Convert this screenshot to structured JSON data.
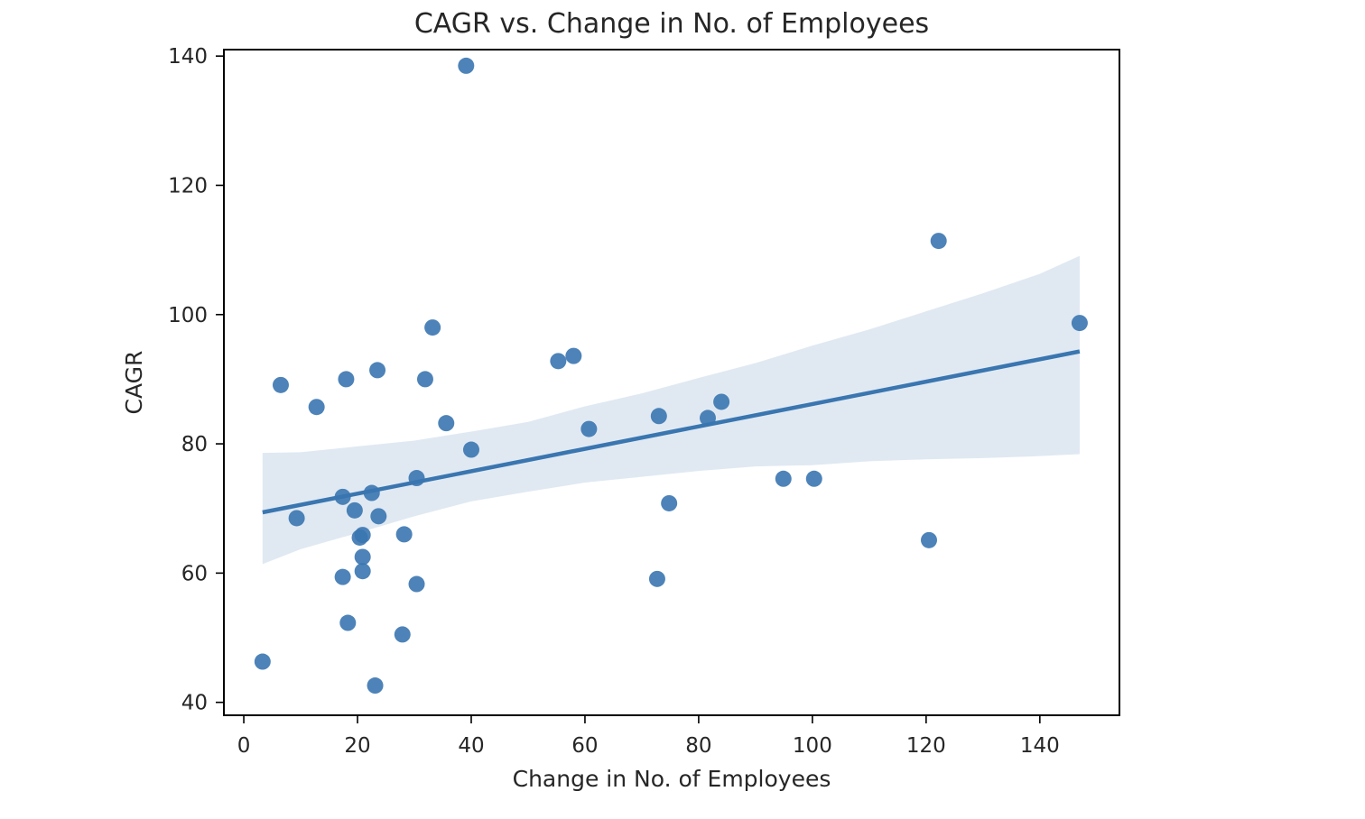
{
  "chart_data": {
    "type": "scatter",
    "title": "CAGR vs. Change in No. of Employees",
    "xlabel": "Change in No. of Employees",
    "ylabel": "CAGR",
    "xlim": [
      -3.5,
      154
    ],
    "ylim": [
      38,
      141
    ],
    "xticks": [
      0,
      20,
      40,
      60,
      80,
      100,
      120,
      140
    ],
    "yticks": [
      40,
      60,
      80,
      100,
      120,
      140
    ],
    "grid": false,
    "legend": "none",
    "colors": {
      "point": "#3a76b0",
      "line": "#3a76b0",
      "band": "#dbe5f0",
      "axes": "#000000"
    },
    "points": [
      {
        "x": 3.3,
        "y": 46.3
      },
      {
        "x": 6.5,
        "y": 89.1
      },
      {
        "x": 9.3,
        "y": 68.5
      },
      {
        "x": 12.8,
        "y": 85.7
      },
      {
        "x": 17.4,
        "y": 71.8
      },
      {
        "x": 17.4,
        "y": 59.4
      },
      {
        "x": 18.0,
        "y": 90.0
      },
      {
        "x": 18.3,
        "y": 52.3
      },
      {
        "x": 19.5,
        "y": 69.7
      },
      {
        "x": 20.4,
        "y": 65.5
      },
      {
        "x": 20.9,
        "y": 65.9
      },
      {
        "x": 20.9,
        "y": 62.5
      },
      {
        "x": 20.9,
        "y": 60.3
      },
      {
        "x": 22.5,
        "y": 72.4
      },
      {
        "x": 23.1,
        "y": 42.6
      },
      {
        "x": 23.5,
        "y": 91.4
      },
      {
        "x": 23.7,
        "y": 68.8
      },
      {
        "x": 27.9,
        "y": 50.5
      },
      {
        "x": 28.2,
        "y": 66.0
      },
      {
        "x": 30.4,
        "y": 74.7
      },
      {
        "x": 30.4,
        "y": 58.3
      },
      {
        "x": 31.9,
        "y": 90.0
      },
      {
        "x": 33.2,
        "y": 98.0
      },
      {
        "x": 35.6,
        "y": 83.2
      },
      {
        "x": 39.1,
        "y": 138.5
      },
      {
        "x": 40.0,
        "y": 79.1
      },
      {
        "x": 55.3,
        "y": 92.8
      },
      {
        "x": 58.0,
        "y": 93.6
      },
      {
        "x": 60.7,
        "y": 82.3
      },
      {
        "x": 72.7,
        "y": 59.1
      },
      {
        "x": 73.0,
        "y": 84.3
      },
      {
        "x": 74.8,
        "y": 70.8
      },
      {
        "x": 81.6,
        "y": 84.0
      },
      {
        "x": 84.0,
        "y": 86.5
      },
      {
        "x": 94.9,
        "y": 74.6
      },
      {
        "x": 100.3,
        "y": 74.6
      },
      {
        "x": 120.5,
        "y": 65.1
      },
      {
        "x": 122.2,
        "y": 111.4
      },
      {
        "x": 147.0,
        "y": 98.7
      }
    ],
    "regression": {
      "x": [
        3.3,
        147.0
      ],
      "y": [
        69.4,
        94.3
      ]
    },
    "confidence_band": {
      "x": [
        3.3,
        10,
        20,
        30,
        40,
        50,
        60,
        70,
        80,
        90,
        100,
        110,
        120,
        130,
        140,
        147.0
      ],
      "upper": [
        78.6,
        78.7,
        79.6,
        80.5,
        81.9,
        83.4,
        85.8,
        87.8,
        90.2,
        92.5,
        95.2,
        97.7,
        100.5,
        103.3,
        106.3,
        109.1
      ],
      "lower": [
        61.4,
        63.7,
        66.2,
        68.8,
        71.1,
        72.6,
        74.0,
        74.9,
        75.8,
        76.5,
        76.7,
        77.3,
        77.6,
        77.8,
        78.1,
        78.4
      ]
    }
  }
}
